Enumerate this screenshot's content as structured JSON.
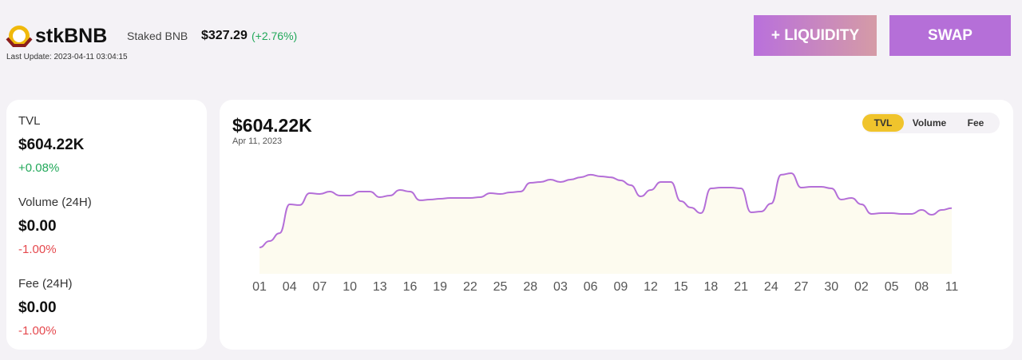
{
  "header": {
    "symbol": "stkBNB",
    "name": "Staked BNB",
    "price": "$327.29",
    "change": "(+2.76%)",
    "last_update": "Last Update: 2023-04-11 03:04:15"
  },
  "buttons": [
    "+ LIQUIDITY",
    "SWAP"
  ],
  "stats": [
    {
      "label": "TVL",
      "value": "$604.22K",
      "change": "+0.08%"
    },
    {
      "label": "Volume (24H)",
      "value": "$0.00",
      "change": "-1.00%"
    },
    {
      "label": "Fee (24H)",
      "value": "$0.00",
      "change": "-1.00%"
    }
  ],
  "panel": {
    "value": "$604.22K",
    "date": "Apr 11, 2023",
    "tabs": [
      "TVL",
      "Volume",
      "Fee"
    ]
  },
  "chart_data": {
    "type": "line",
    "color": "#b46fd8",
    "fill": "#fdfbef",
    "categories": [
      "01",
      null,
      null,
      "04",
      null,
      null,
      "07",
      null,
      null,
      "10",
      null,
      null,
      "13",
      null,
      null,
      "16",
      null,
      null,
      "19",
      null,
      null,
      "22",
      null,
      null,
      "25",
      null,
      null,
      "28",
      null,
      null,
      "03",
      null,
      null,
      "06",
      null,
      null,
      "09",
      null,
      null,
      "12",
      null,
      null,
      "15",
      null,
      null,
      "18",
      null,
      null,
      "21",
      null,
      null,
      "24",
      null,
      null,
      "27",
      null,
      null,
      "30",
      null,
      null,
      "02",
      null,
      null,
      "05",
      null,
      null,
      "08",
      null,
      null,
      "11"
    ],
    "values": [
      242,
      301,
      374,
      639,
      632,
      742,
      734,
      756,
      720,
      720,
      756,
      756,
      705,
      720,
      771,
      756,
      676,
      683,
      690,
      698,
      698,
      698,
      705,
      742,
      734,
      749,
      756,
      837,
      844,
      866,
      844,
      866,
      888,
      911,
      896,
      888,
      859,
      815,
      712,
      771,
      844,
      844,
      668,
      609,
      558,
      786,
      793,
      793,
      786,
      565,
      573,
      646,
      911,
      925,
      793,
      800,
      800,
      786,
      683,
      698,
      639,
      551,
      558,
      558,
      551,
      551,
      587,
      543,
      587,
      604.22
    ],
    "ylim": [
      0,
      1050
    ]
  }
}
